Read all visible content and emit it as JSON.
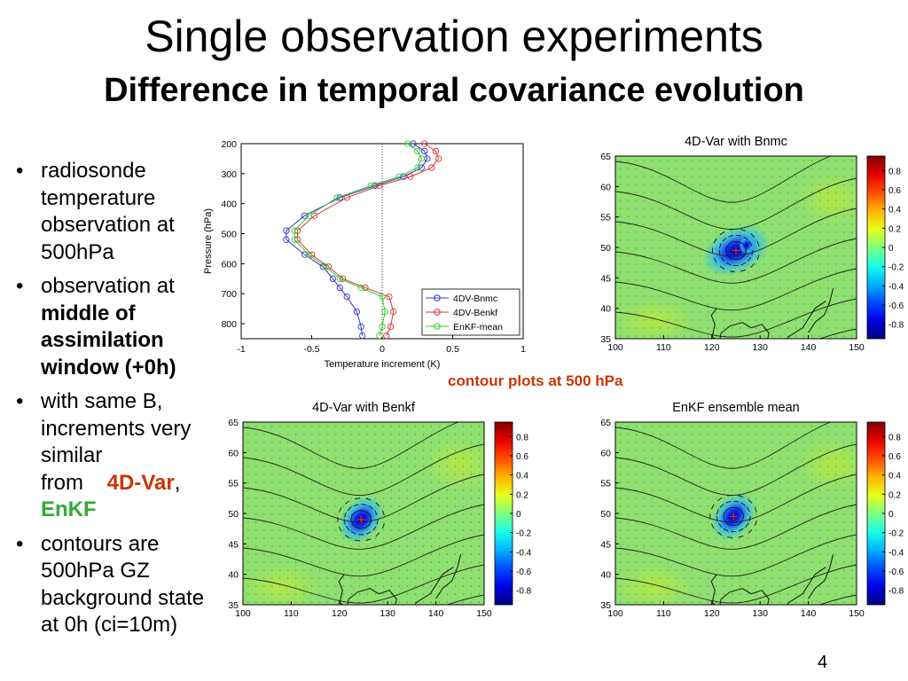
{
  "title": "Single observation experiments",
  "subtitle": "Difference in temporal covariance evolution",
  "bullets": {
    "b1": "radiosonde temperature observation at 500hPa",
    "b2_pre": "observation at ",
    "b2_bold": "middle of assimilation window (+0h)",
    "b3_pre": "with same B, increments very similar from",
    "b3_red": "4D-Var",
    "b3_sep": ",",
    "b3_green": "EnKF",
    "b4": "contours are 500hPa GZ background state at 0h (ci=10m)"
  },
  "contour_label": "contour plots at 500 hPa",
  "page_number": "4",
  "colors": {
    "red": "#cc3300",
    "green": "#33aa33",
    "series_4dv_bnmc": "#3333cc",
    "series_4dv_benkf": "#dd3333",
    "series_enkf": "#33cc33"
  },
  "profile_chart": {
    "xlabel": "Temperature increment (K)",
    "ylabel": "Pressure (hPa)",
    "xticks": [
      "-1",
      "-0.5",
      "0",
      "0.5",
      "1"
    ],
    "yticks": [
      "200",
      "300",
      "400",
      "500",
      "600",
      "700",
      "800"
    ],
    "legend": [
      "4DV-Bnmc",
      "4DV-Benkf",
      "EnKF-mean"
    ]
  },
  "chart_data": [
    {
      "type": "line",
      "xlabel": "Temperature increment (K)",
      "ylabel": "Pressure (hPa)",
      "xlim": [
        -1,
        1
      ],
      "ylim": [
        850,
        200
      ],
      "y_inverted": true,
      "legend_position": "bottom-right",
      "series": [
        {
          "name": "4DV-Bnmc",
          "x": [
            0.22,
            0.3,
            0.32,
            0.28,
            0.15,
            -0.05,
            -0.3,
            -0.55,
            -0.68,
            -0.68,
            -0.55,
            -0.42,
            -0.35,
            -0.3,
            -0.25,
            -0.18,
            -0.15,
            -0.14
          ],
          "y": [
            200,
            225,
            250,
            280,
            310,
            340,
            380,
            440,
            490,
            520,
            570,
            610,
            650,
            680,
            710,
            760,
            810,
            840
          ]
        },
        {
          "name": "4DV-Benkf",
          "x": [
            0.3,
            0.38,
            0.4,
            0.35,
            0.2,
            -0.02,
            -0.25,
            -0.48,
            -0.6,
            -0.6,
            -0.5,
            -0.38,
            -0.28,
            -0.12,
            0.05,
            0.08,
            0.06,
            0.03
          ],
          "y": [
            200,
            225,
            250,
            280,
            310,
            340,
            380,
            440,
            490,
            520,
            570,
            610,
            650,
            680,
            710,
            760,
            810,
            840
          ]
        },
        {
          "name": "EnKF-mean",
          "x": [
            0.18,
            0.25,
            0.28,
            0.25,
            0.12,
            -0.08,
            -0.32,
            -0.52,
            -0.62,
            -0.62,
            -0.52,
            -0.4,
            -0.3,
            -0.15,
            0.0,
            0.02,
            0.0,
            -0.02
          ],
          "y": [
            200,
            225,
            250,
            280,
            310,
            340,
            380,
            440,
            490,
            520,
            570,
            610,
            650,
            680,
            710,
            760,
            810,
            840
          ]
        }
      ]
    },
    {
      "type": "heatmap",
      "title": "4D-Var with Bnmc",
      "xlim": [
        100,
        150
      ],
      "ylim": [
        35,
        65
      ],
      "xticks": [
        "100",
        "110",
        "120",
        "130",
        "140",
        "150"
      ],
      "yticks": [
        "35",
        "40",
        "45",
        "50",
        "55",
        "60",
        "65"
      ],
      "colorbar_ticks": [
        "0.8",
        "0.6",
        "0.4",
        "0.2",
        "0",
        "-0.2",
        "-0.4",
        "-0.6",
        "-0.8"
      ],
      "peak": {
        "lon": 125,
        "lat": 49.5,
        "value": -0.7
      }
    },
    {
      "type": "heatmap",
      "title": "4D-Var with Benkf",
      "xlim": [
        100,
        150
      ],
      "ylim": [
        35,
        65
      ],
      "xticks": [
        "100",
        "110",
        "120",
        "130",
        "140",
        "150"
      ],
      "yticks": [
        "35",
        "40",
        "45",
        "50",
        "55",
        "60",
        "65"
      ],
      "colorbar_ticks": [
        "0.8",
        "0.6",
        "0.4",
        "0.2",
        "0",
        "-0.2",
        "-0.4",
        "-0.6",
        "-0.8"
      ],
      "peak": {
        "lon": 124.5,
        "lat": 49,
        "value": -0.8
      }
    },
    {
      "type": "heatmap",
      "title": "EnKF ensemble mean",
      "xlim": [
        100,
        150
      ],
      "ylim": [
        35,
        65
      ],
      "xticks": [
        "100",
        "110",
        "120",
        "130",
        "140",
        "150"
      ],
      "yticks": [
        "35",
        "40",
        "45",
        "50",
        "55",
        "60",
        "65"
      ],
      "colorbar_ticks": [
        "0.8",
        "0.6",
        "0.4",
        "0.2",
        "0",
        "-0.2",
        "-0.4",
        "-0.6",
        "-0.8"
      ],
      "peak": {
        "lon": 124.5,
        "lat": 49.5,
        "value": -0.8
      }
    }
  ]
}
